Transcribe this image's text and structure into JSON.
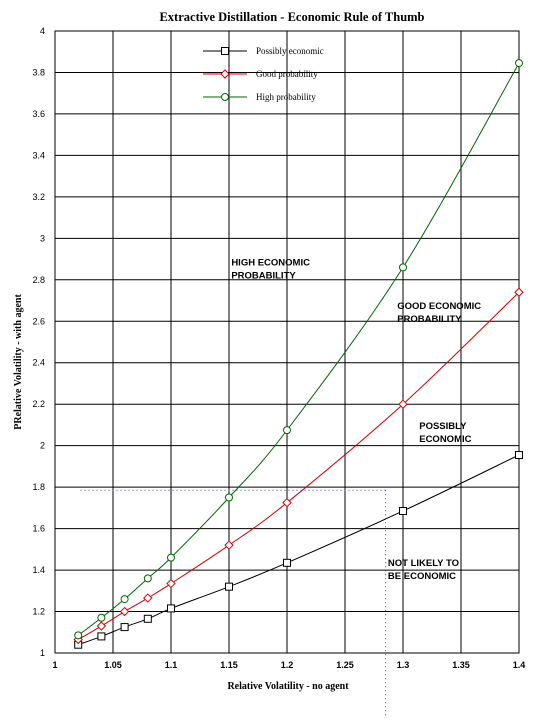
{
  "chart_data": {
    "type": "line",
    "title": "Extractive Distillation - Economic Rule of Thumb",
    "xlabel": "Relative Volatility  -  no agent",
    "ylabel": "PRelative Volatility  - with agent",
    "xlim": [
      1,
      1.4
    ],
    "ylim": [
      1,
      4
    ],
    "x_ticks": [
      "1",
      "1.05",
      "1.1",
      "1.15",
      "1.2",
      "1.25",
      "1.3",
      "1.35",
      "1.4"
    ],
    "y_ticks": [
      "1",
      "1.2",
      "1.4",
      "1.6",
      "1.8",
      "2",
      "2.2",
      "2.4",
      "2.6",
      "2.8",
      "3",
      "3.2",
      "3.4",
      "3.6",
      "3.8",
      "4"
    ],
    "grid": true,
    "legend_position": "top-center",
    "series": [
      {
        "name": "Possibly economic",
        "color": "#000000",
        "marker": "square",
        "x": [
          1.02,
          1.04,
          1.06,
          1.08,
          1.1,
          1.15,
          1.2,
          1.3,
          1.4
        ],
        "y": [
          1.04,
          1.08,
          1.125,
          1.165,
          1.215,
          1.32,
          1.435,
          1.685,
          1.955
        ]
      },
      {
        "name": "Good probability",
        "color": "#cc0000",
        "marker": "diamond",
        "x": [
          1.02,
          1.04,
          1.06,
          1.08,
          1.1,
          1.15,
          1.2,
          1.3,
          1.4
        ],
        "y": [
          1.065,
          1.13,
          1.2,
          1.265,
          1.335,
          1.52,
          1.725,
          2.2,
          2.74
        ]
      },
      {
        "name": "High probability",
        "color": "#006600",
        "marker": "circle",
        "x": [
          1.02,
          1.04,
          1.06,
          1.08,
          1.1,
          1.15,
          1.2,
          1.3,
          1.4
        ],
        "y": [
          1.085,
          1.17,
          1.26,
          1.36,
          1.46,
          1.75,
          2.075,
          2.86,
          3.845
        ]
      }
    ],
    "annotations": [
      {
        "lines": [
          "HIGH ECONOMIC",
          "PROBABILITY"
        ],
        "x": 1.152,
        "y": 2.87
      },
      {
        "lines": [
          "GOOD ECONOMIC",
          "PROBABILITY"
        ],
        "x": 1.295,
        "y": 2.66
      },
      {
        "lines": [
          "POSSIBLY",
          "ECONOMIC"
        ],
        "x": 1.314,
        "y": 2.08
      },
      {
        "lines": [
          "NOT LIKELY TO",
          "BE ECONOMIC"
        ],
        "x": 1.287,
        "y": 1.42
      }
    ],
    "reference_lines": [
      {
        "orientation": "horizontal",
        "y": 1.785,
        "x_from": 1.022,
        "x_to": 1.285,
        "color": "#3333cc",
        "style": "dotted"
      },
      {
        "orientation": "vertical",
        "x": 1.285,
        "y_from": 1.785,
        "y_to": 1.0,
        "color": "#3333cc",
        "style": "dotted"
      }
    ]
  }
}
